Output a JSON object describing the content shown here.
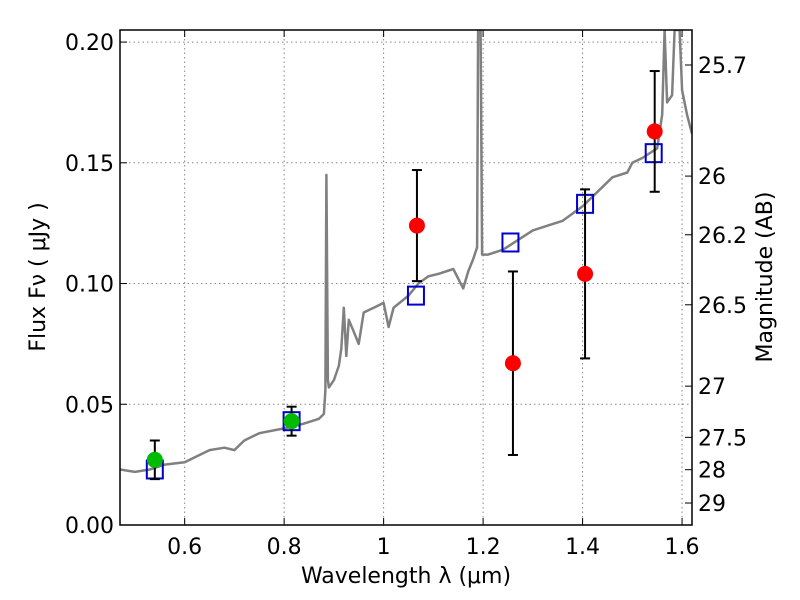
{
  "chart_data": {
    "type": "scatter",
    "xlabel": "Wavelength  λ (μm)",
    "ylabel": "Flux  Fν  ( μJy )",
    "y2label": "Magnitude (AB)",
    "xlim": [
      0.47,
      1.62
    ],
    "ylim": [
      0.0,
      0.205
    ],
    "grid": true,
    "x_ticks": [
      0.6,
      0.8,
      1.0,
      1.2,
      1.4,
      1.6
    ],
    "x_tick_labels": [
      "0.6",
      "0.8",
      "1",
      "1.2",
      "1.4",
      "1.6"
    ],
    "y_ticks": [
      0.0,
      0.05,
      0.1,
      0.15,
      0.2
    ],
    "y_tick_labels": [
      "0.00",
      "0.05",
      "0.10",
      "0.15",
      "0.20"
    ],
    "mag_ticks": [
      {
        "label": "25.7",
        "flux": 0.1905
      },
      {
        "label": "26",
        "flux": 0.1445
      },
      {
        "label": "26.2",
        "flux": 0.1202
      },
      {
        "label": "26.5",
        "flux": 0.0912
      },
      {
        "label": "27",
        "flux": 0.0575
      },
      {
        "label": "27.5",
        "flux": 0.0363
      },
      {
        "label": "28",
        "flux": 0.0229
      },
      {
        "label": "29",
        "flux": 0.0091
      }
    ],
    "colors": {
      "model": "#808080",
      "red_points": "#ff0000",
      "green_points": "#00bb00",
      "squares": "#0000cc",
      "errorbars": "#000000",
      "grid": "#888888"
    },
    "model_spectrum": [
      [
        0.47,
        0.023
      ],
      [
        0.5,
        0.022
      ],
      [
        0.53,
        0.023
      ],
      [
        0.56,
        0.025
      ],
      [
        0.6,
        0.026
      ],
      [
        0.65,
        0.031
      ],
      [
        0.68,
        0.032
      ],
      [
        0.7,
        0.031
      ],
      [
        0.72,
        0.035
      ],
      [
        0.75,
        0.038
      ],
      [
        0.8,
        0.04
      ],
      [
        0.84,
        0.042
      ],
      [
        0.87,
        0.044
      ],
      [
        0.88,
        0.046
      ],
      [
        0.883,
        0.056
      ],
      [
        0.885,
        0.145
      ],
      [
        0.888,
        0.06
      ],
      [
        0.89,
        0.057
      ],
      [
        0.9,
        0.06
      ],
      [
        0.91,
        0.066
      ],
      [
        0.915,
        0.073
      ],
      [
        0.92,
        0.09
      ],
      [
        0.925,
        0.07
      ],
      [
        0.93,
        0.085
      ],
      [
        0.94,
        0.08
      ],
      [
        0.95,
        0.075
      ],
      [
        0.96,
        0.088
      ],
      [
        0.98,
        0.09
      ],
      [
        1.0,
        0.092
      ],
      [
        1.01,
        0.082
      ],
      [
        1.02,
        0.09
      ],
      [
        1.05,
        0.095
      ],
      [
        1.07,
        0.1
      ],
      [
        1.09,
        0.103
      ],
      [
        1.11,
        0.104
      ],
      [
        1.14,
        0.106
      ],
      [
        1.16,
        0.098
      ],
      [
        1.17,
        0.105
      ],
      [
        1.18,
        0.11
      ],
      [
        1.188,
        0.115
      ],
      [
        1.19,
        0.205
      ],
      [
        1.195,
        0.205
      ],
      [
        1.198,
        0.112
      ],
      [
        1.21,
        0.112
      ],
      [
        1.24,
        0.114
      ],
      [
        1.27,
        0.118
      ],
      [
        1.3,
        0.122
      ],
      [
        1.33,
        0.124
      ],
      [
        1.36,
        0.126
      ],
      [
        1.4,
        0.132
      ],
      [
        1.43,
        0.138
      ],
      [
        1.46,
        0.144
      ],
      [
        1.49,
        0.146
      ],
      [
        1.5,
        0.15
      ],
      [
        1.52,
        0.152
      ],
      [
        1.55,
        0.156
      ],
      [
        1.56,
        0.17
      ],
      [
        1.565,
        0.205
      ],
      [
        1.57,
        0.175
      ],
      [
        1.58,
        0.178
      ],
      [
        1.585,
        0.205
      ],
      [
        1.595,
        0.205
      ],
      [
        1.6,
        0.18
      ],
      [
        1.61,
        0.17
      ],
      [
        1.62,
        0.162
      ]
    ],
    "red_points": [
      {
        "x": 1.067,
        "y": 0.124,
        "ylo": 0.101,
        "yhi": 0.147
      },
      {
        "x": 1.26,
        "y": 0.067,
        "ylo": 0.029,
        "yhi": 0.105
      },
      {
        "x": 1.405,
        "y": 0.104,
        "ylo": 0.069,
        "yhi": 0.139
      },
      {
        "x": 1.545,
        "y": 0.163,
        "ylo": 0.138,
        "yhi": 0.188
      }
    ],
    "green_points": [
      {
        "x": 0.54,
        "y": 0.027,
        "ylo": 0.019,
        "yhi": 0.035
      },
      {
        "x": 0.815,
        "y": 0.043,
        "ylo": 0.037,
        "yhi": 0.049
      }
    ],
    "squares": [
      {
        "x": 0.54,
        "y": 0.023
      },
      {
        "x": 0.815,
        "y": 0.043
      },
      {
        "x": 1.065,
        "y": 0.095
      },
      {
        "x": 1.255,
        "y": 0.117
      },
      {
        "x": 1.405,
        "y": 0.133
      },
      {
        "x": 1.543,
        "y": 0.154
      }
    ]
  }
}
